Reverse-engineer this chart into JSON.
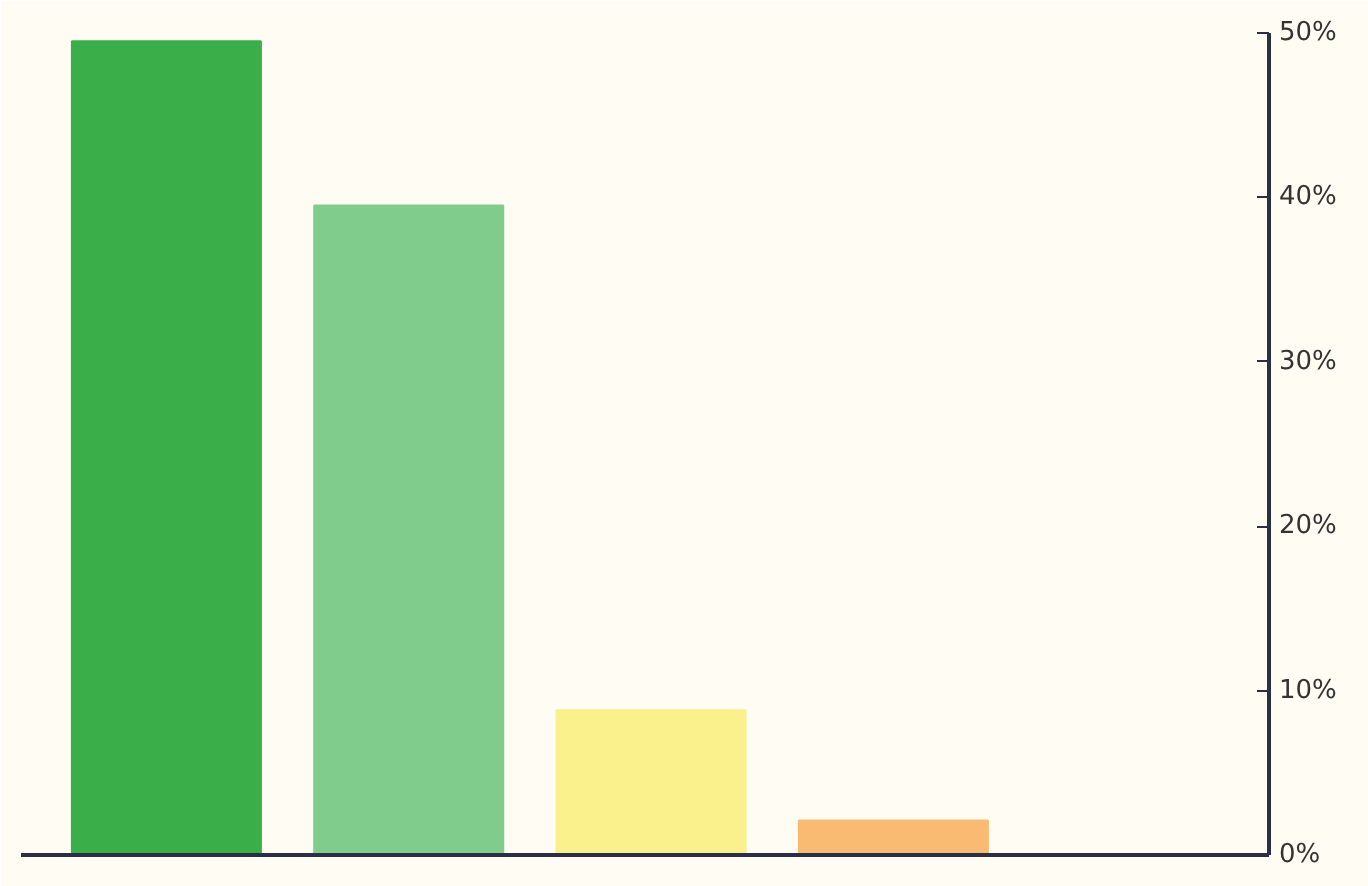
{
  "chart_data": {
    "type": "bar",
    "categories": [
      null,
      null,
      null,
      null,
      null
    ],
    "values": [
      49.5,
      39.5,
      8.8,
      2.1,
      0
    ],
    "colors": [
      "#3aae48",
      "#80cc8c",
      "#faf08c",
      "#f9bb72",
      "#f4a57a"
    ],
    "ylim": [
      0,
      50
    ],
    "yticks": [
      {
        "value": 0,
        "label": "0%"
      },
      {
        "value": 10,
        "label": "10%"
      },
      {
        "value": 20,
        "label": "20%"
      },
      {
        "value": 30,
        "label": "30%"
      },
      {
        "value": 40,
        "label": "40%"
      },
      {
        "value": 50,
        "label": "50%"
      }
    ],
    "tick_labels": "y",
    "grid": false
  }
}
